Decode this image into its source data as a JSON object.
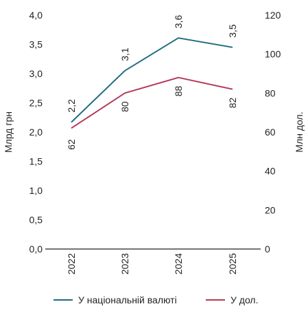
{
  "chart_data": {
    "type": "line",
    "categories": [
      "2022",
      "2023",
      "2024",
      "2025"
    ],
    "left_axis": {
      "label": "Млрд грн",
      "min": 0,
      "max": 4,
      "ticks": [
        "0,0",
        "0,5",
        "1,0",
        "1,5",
        "2,0",
        "2,5",
        "3,0",
        "3,5",
        "4,0"
      ]
    },
    "right_axis": {
      "label": "Млн дол.",
      "min": 0,
      "max": 120,
      "ticks": [
        "0",
        "20",
        "40",
        "60",
        "80",
        "100",
        "120"
      ]
    },
    "grid": false,
    "legend_position": "bottom",
    "series": [
      {
        "name": "У національній валюті",
        "axis": "left",
        "color": "#1f6b80",
        "values": [
          2.17,
          3.05,
          3.61,
          3.45
        ],
        "labels": [
          "2,2",
          "3,1",
          "3,6",
          "3,5"
        ]
      },
      {
        "name": "У дол.",
        "axis": "right",
        "color": "#b8395a",
        "values": [
          62,
          80,
          88,
          82
        ],
        "labels": [
          "62",
          "80",
          "88",
          "82"
        ]
      }
    ]
  }
}
